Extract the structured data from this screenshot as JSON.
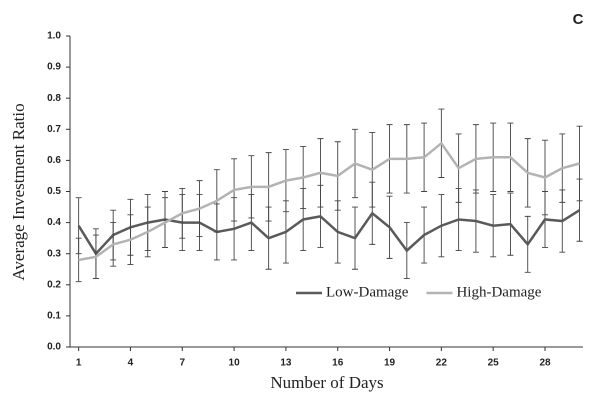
{
  "chart_data": {
    "type": "line",
    "panel_label": "C",
    "xlabel": "Number of Days",
    "ylabel": "Average Investment Ratio",
    "x": [
      1,
      2,
      3,
      4,
      5,
      6,
      7,
      8,
      9,
      10,
      11,
      12,
      13,
      14,
      15,
      16,
      17,
      18,
      19,
      20,
      21,
      22,
      23,
      24,
      25,
      26,
      27,
      28,
      29,
      30
    ],
    "series": [
      {
        "name": "Low-Damage",
        "color": "#5a5a5a",
        "values": [
          0.39,
          0.3,
          0.36,
          0.385,
          0.4,
          0.41,
          0.4,
          0.4,
          0.37,
          0.38,
          0.4,
          0.35,
          0.37,
          0.41,
          0.42,
          0.37,
          0.35,
          0.43,
          0.385,
          0.31,
          0.36,
          0.39,
          0.41,
          0.405,
          0.39,
          0.395,
          0.33,
          0.41,
          0.405,
          0.44
        ],
        "errors": [
          0.09,
          0.08,
          0.08,
          0.09,
          0.09,
          0.09,
          0.09,
          0.09,
          0.09,
          0.1,
          0.09,
          0.1,
          0.1,
          0.1,
          0.1,
          0.1,
          0.1,
          0.1,
          0.1,
          0.09,
          0.09,
          0.1,
          0.1,
          0.1,
          0.1,
          0.1,
          0.09,
          0.09,
          0.1,
          0.1
        ]
      },
      {
        "name": "High-Damage",
        "color": "#b3b3b3",
        "values": [
          0.28,
          0.29,
          0.33,
          0.345,
          0.37,
          0.4,
          0.43,
          0.445,
          0.47,
          0.505,
          0.515,
          0.515,
          0.535,
          0.545,
          0.56,
          0.55,
          0.59,
          0.57,
          0.605,
          0.605,
          0.61,
          0.655,
          0.575,
          0.605,
          0.61,
          0.61,
          0.56,
          0.545,
          0.575,
          0.59
        ],
        "errors": [
          0.07,
          0.07,
          0.07,
          0.08,
          0.08,
          0.08,
          0.08,
          0.09,
          0.1,
          0.1,
          0.1,
          0.11,
          0.1,
          0.1,
          0.11,
          0.11,
          0.11,
          0.12,
          0.11,
          0.11,
          0.11,
          0.11,
          0.11,
          0.11,
          0.11,
          0.11,
          0.11,
          0.12,
          0.11,
          0.12
        ]
      }
    ],
    "xlim": [
      0.5,
      30.2
    ],
    "xticks": [
      1,
      4,
      7,
      10,
      13,
      16,
      19,
      22,
      25,
      28
    ],
    "ylim": [
      0,
      1
    ],
    "yticks": [
      {
        "value": 0,
        "label": "0.0"
      },
      0.1,
      0.2,
      0.3,
      0.4,
      0.5,
      0.6,
      0.7,
      0.8,
      0.9,
      {
        "value": 1,
        "label": "1.0"
      }
    ],
    "legend": "lower-center"
  }
}
